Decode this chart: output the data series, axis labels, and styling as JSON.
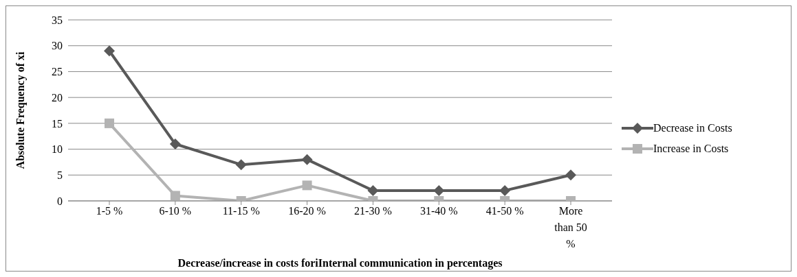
{
  "chart_data": {
    "type": "line",
    "xlabel": "Decrease/increase in costs foriInternal communication in percentages",
    "ylabel": "Absolute Frequency of xi",
    "categories": [
      "1-5 %",
      "6-10 %",
      "11-15 %",
      "16-20 %",
      "21-30 %",
      "31-40 %",
      "41-50 %",
      "More than 50 %"
    ],
    "series": [
      {
        "name": "Decrease in Costs",
        "color": "#595959",
        "marker": "diamond",
        "values": [
          29,
          11,
          7,
          8,
          2,
          2,
          2,
          5
        ]
      },
      {
        "name": "Increase in Costs",
        "color": "#b3b3b3",
        "marker": "square",
        "values": [
          15,
          1,
          0,
          3,
          0,
          0,
          0,
          0
        ]
      }
    ],
    "ylim": [
      0,
      35
    ],
    "yticks": [
      0,
      5,
      10,
      15,
      20,
      25,
      30,
      35
    ],
    "grid": "y",
    "legend": "right",
    "line_style": "solid"
  }
}
